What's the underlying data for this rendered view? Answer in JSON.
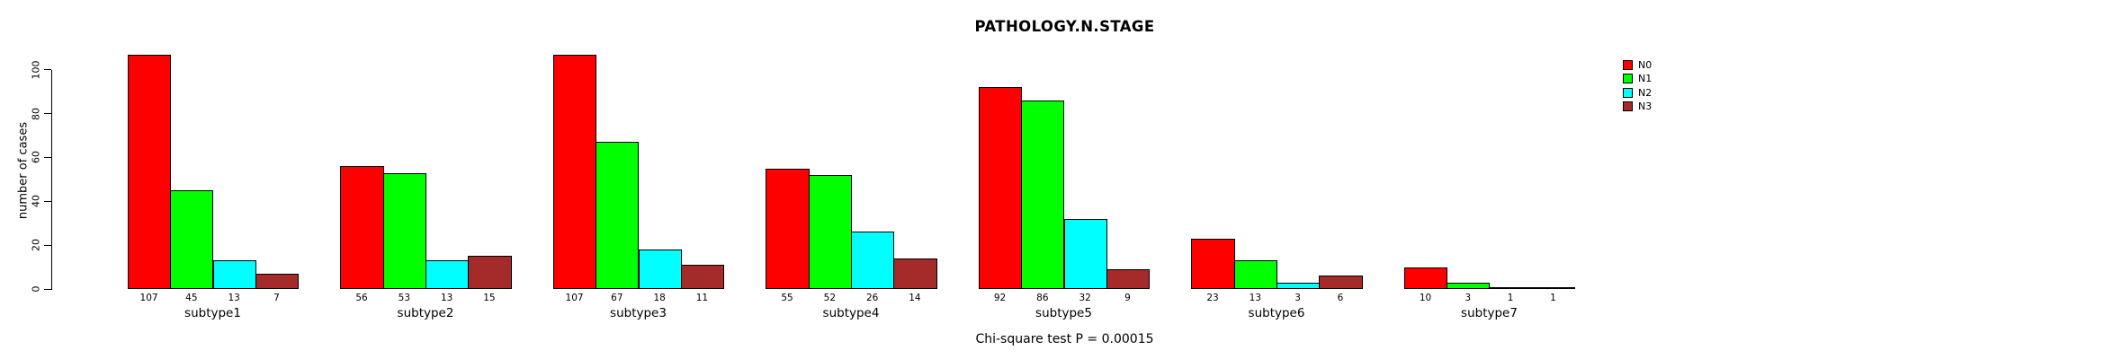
{
  "chart_data": {
    "type": "bar",
    "title": "PATHOLOGY.N.STAGE",
    "ylabel": "number of cases",
    "footer": "Chi-square test P = 0.00015",
    "categories": [
      "subtype1",
      "subtype2",
      "subtype3",
      "subtype4",
      "subtype5",
      "subtype6",
      "subtype7"
    ],
    "series": [
      {
        "name": "N0",
        "color": "#FF0000",
        "values": [
          107,
          56,
          107,
          55,
          92,
          23,
          10
        ]
      },
      {
        "name": "N1",
        "color": "#00FF00",
        "values": [
          45,
          53,
          67,
          52,
          86,
          13,
          3
        ]
      },
      {
        "name": "N2",
        "color": "#00FFFF",
        "values": [
          13,
          13,
          18,
          26,
          32,
          3,
          1
        ]
      },
      {
        "name": "N3",
        "color": "#A52A2A",
        "values": [
          7,
          15,
          11,
          14,
          9,
          6,
          1
        ]
      }
    ],
    "bar_value_labels_shown": true,
    "y_ticks": [
      0,
      20,
      40,
      60,
      80,
      100
    ],
    "ylim": [
      0,
      107
    ],
    "grid": false,
    "legend_position": "right",
    "background_color": "#FFFFFF",
    "text_color": "#000000"
  }
}
